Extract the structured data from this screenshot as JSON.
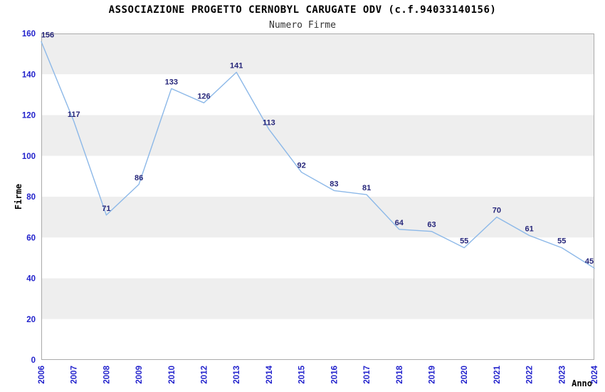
{
  "chart_data": {
    "type": "line",
    "title": "ASSOCIAZIONE PROGETTO CERNOBYL CARUGATE ODV (c.f.94033140156)",
    "subtitle": "Numero Firme",
    "xlabel": "Anno",
    "ylabel": "Firme",
    "categories": [
      "2006",
      "2007",
      "2008",
      "2009",
      "2010",
      "2012",
      "2013",
      "2014",
      "2015",
      "2016",
      "2017",
      "2018",
      "2019",
      "2020",
      "2021",
      "2022",
      "2023",
      "2024"
    ],
    "values": [
      156,
      117,
      71,
      86,
      133,
      126,
      141,
      113,
      92,
      83,
      81,
      64,
      63,
      55,
      70,
      61,
      55,
      45
    ],
    "ylim": [
      0,
      160
    ],
    "yticks": [
      0,
      20,
      40,
      60,
      80,
      100,
      120,
      140,
      160
    ],
    "grid": "alternating-horizontal-bands",
    "legend": "none",
    "point_labels_visible": true,
    "colors": {
      "line": "#8cb8e8",
      "point_label": "#26267a",
      "tick_label": "#2222cc",
      "band_gray": "#eeeeee",
      "band_white": "#ffffff",
      "plot_border": "#aaaaaa",
      "title": "#000000",
      "subtitle": "#333333",
      "axis_title": "#000000"
    }
  }
}
